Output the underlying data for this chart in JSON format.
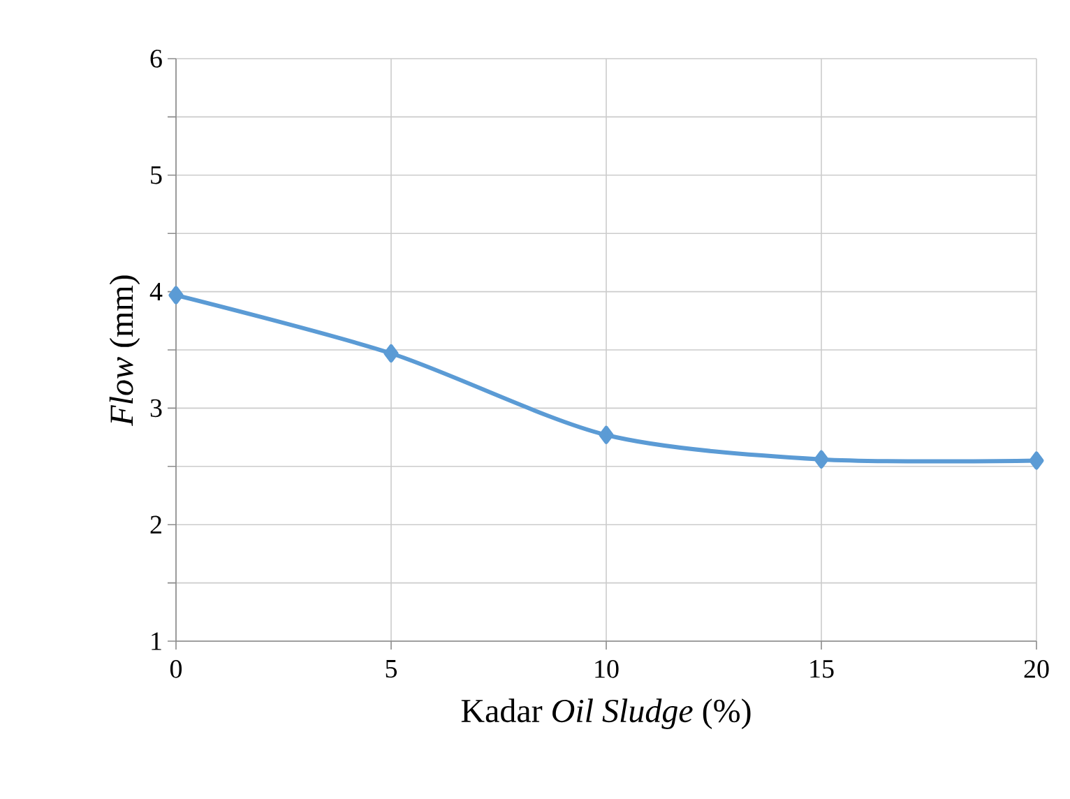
{
  "chart_data": {
    "type": "line",
    "xlabel": "Kadar *Oil Sludge* (%)",
    "ylabel": "*Flow* (mm)",
    "x": [
      0,
      5,
      10,
      15,
      20
    ],
    "series": [
      {
        "color": "#5b9bd5",
        "values": [
          3.97,
          3.47,
          2.77,
          2.56,
          2.55
        ]
      }
    ],
    "xlim": [
      0,
      20
    ],
    "xticks": [
      0,
      5,
      10,
      15,
      20
    ],
    "ylim": [
      1,
      6
    ],
    "yticks": [
      1,
      {
        "value": 1.5,
        "label": null
      },
      2,
      {
        "value": 2.5,
        "label": null
      },
      3,
      {
        "value": 3.5,
        "label": null
      },
      4,
      {
        "value": 4.5,
        "label": null
      },
      5,
      {
        "value": 5.5,
        "label": null
      },
      6
    ],
    "grid": true,
    "marker": "diamond",
    "line_style": "solid"
  }
}
